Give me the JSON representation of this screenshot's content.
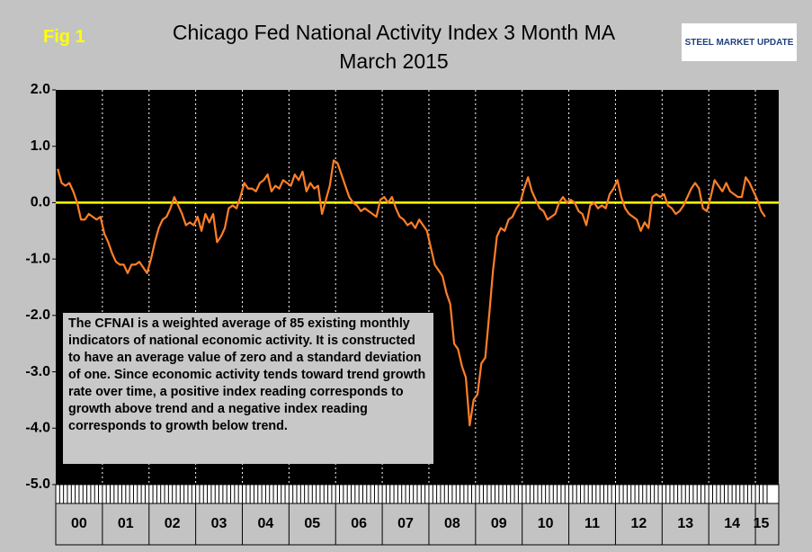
{
  "fig_label": "Fig 1",
  "logo": "STEEL MARKET UPDATE",
  "chart_data": {
    "type": "line",
    "title": "Chicago Fed National Activity Index 3 Month MA",
    "subtitle": "March 2015",
    "annotation": "The CFNAI is a weighted average of 85 existing monthly indicators of national economic activity. It is constructed to have an average value of zero and a standard deviation of one. Since economic activity tends toward trend growth rate over time, a positive index reading corresponds to growth above trend and a negative index reading corresponds to growth below trend.",
    "categories": [
      null,
      null,
      null,
      null,
      null,
      null,
      "00",
      null,
      null,
      null,
      null,
      null,
      null,
      null,
      null,
      null,
      null,
      null,
      "01",
      null,
      null,
      null,
      null,
      null,
      null,
      null,
      null,
      null,
      null,
      null,
      "02",
      null,
      null,
      null,
      null,
      null,
      null,
      null,
      null,
      null,
      null,
      null,
      "03",
      null,
      null,
      null,
      null,
      null,
      null,
      null,
      null,
      null,
      null,
      null,
      "04",
      null,
      null,
      null,
      null,
      null,
      null,
      null,
      null,
      null,
      null,
      null,
      "05",
      null,
      null,
      null,
      null,
      null,
      null,
      null,
      null,
      null,
      null,
      null,
      "06",
      null,
      null,
      null,
      null,
      null,
      null,
      null,
      null,
      null,
      null,
      null,
      "07",
      null,
      null,
      null,
      null,
      null,
      null,
      null,
      null,
      null,
      null,
      null,
      "08",
      null,
      null,
      null,
      null,
      null,
      null,
      null,
      null,
      null,
      null,
      null,
      "09",
      null,
      null,
      null,
      null,
      null,
      null,
      null,
      null,
      null,
      null,
      null,
      "10",
      null,
      null,
      null,
      null,
      null,
      null,
      null,
      null,
      null,
      null,
      null,
      "11",
      null,
      null,
      null,
      null,
      null,
      null,
      null,
      null,
      null,
      null,
      null,
      "12",
      null,
      null,
      null,
      null,
      null,
      null,
      null,
      null,
      null,
      null,
      null,
      "13",
      null,
      null,
      null,
      null,
      null,
      null,
      null,
      null,
      null,
      null,
      null,
      "14",
      null,
      null,
      null,
      null,
      null,
      null,
      "15",
      null
    ],
    "series": [
      {
        "name": "CFNAI 3 Month MA",
        "color": "#ff7f27",
        "values": [
          0.6,
          0.35,
          0.3,
          0.35,
          0.2,
          0.0,
          -0.3,
          -0.3,
          -0.2,
          -0.25,
          -0.3,
          -0.25,
          -0.55,
          -0.7,
          -0.9,
          -1.05,
          -1.1,
          -1.1,
          -1.25,
          -1.1,
          -1.1,
          -1.05,
          -1.15,
          -1.25,
          -1.0,
          -0.7,
          -0.45,
          -0.3,
          -0.25,
          -0.1,
          0.1,
          -0.05,
          -0.2,
          -0.4,
          -0.35,
          -0.4,
          -0.25,
          -0.5,
          -0.2,
          -0.35,
          -0.2,
          -0.7,
          -0.6,
          -0.45,
          -0.1,
          -0.05,
          -0.1,
          0.1,
          0.35,
          0.25,
          0.25,
          0.2,
          0.35,
          0.4,
          0.5,
          0.2,
          0.3,
          0.25,
          0.4,
          0.35,
          0.3,
          0.5,
          0.4,
          0.55,
          0.2,
          0.35,
          0.25,
          0.3,
          -0.2,
          0.05,
          0.3,
          0.75,
          0.7,
          0.5,
          0.3,
          0.1,
          0.0,
          -0.05,
          -0.15,
          -0.1,
          -0.15,
          -0.2,
          -0.25,
          0.05,
          0.1,
          0.0,
          0.1,
          -0.1,
          -0.25,
          -0.3,
          -0.4,
          -0.35,
          -0.45,
          -0.3,
          -0.4,
          -0.5,
          -0.8,
          -1.1,
          -1.2,
          -1.3,
          -1.6,
          -1.8,
          -2.5,
          -2.6,
          -2.9,
          -3.1,
          -3.95,
          -3.5,
          -3.4,
          -2.85,
          -2.75,
          -2.0,
          -1.2,
          -0.6,
          -0.45,
          -0.5,
          -0.3,
          -0.25,
          -0.1,
          0.0,
          0.25,
          0.45,
          0.2,
          0.05,
          -0.1,
          -0.15,
          -0.3,
          -0.25,
          -0.2,
          0.0,
          0.1,
          0.0,
          0.05,
          0.0,
          -0.15,
          -0.2,
          -0.4,
          -0.05,
          0.0,
          -0.1,
          -0.05,
          -0.1,
          0.15,
          0.25,
          0.4,
          0.1,
          -0.1,
          -0.2,
          -0.25,
          -0.3,
          -0.5,
          -0.35,
          -0.45,
          0.1,
          0.15,
          0.1,
          0.15,
          -0.05,
          -0.1,
          -0.2,
          -0.15,
          -0.05,
          0.1,
          0.25,
          0.35,
          0.25,
          -0.1,
          -0.15,
          0.1,
          0.4,
          0.3,
          0.2,
          0.35,
          0.2,
          0.15,
          0.1,
          0.1,
          0.45,
          0.35,
          0.2,
          0.05,
          -0.15,
          -0.25
        ]
      }
    ],
    "ylim": [
      -5,
      2
    ],
    "yticks": [
      {
        "value": 2,
        "label": "2.0"
      },
      {
        "value": 1,
        "label": "1.0"
      },
      {
        "value": 0,
        "label": "0.0"
      },
      {
        "value": -1,
        "label": "-1.0"
      },
      {
        "value": -2,
        "label": "-2.0"
      },
      {
        "value": -3,
        "label": "-3.0"
      },
      {
        "value": -4,
        "label": "-4.0"
      },
      {
        "value": -5,
        "label": "-5.0"
      }
    ],
    "reference_line": {
      "value": 0,
      "color": "#ffff00"
    },
    "plot_background": "#000000"
  }
}
